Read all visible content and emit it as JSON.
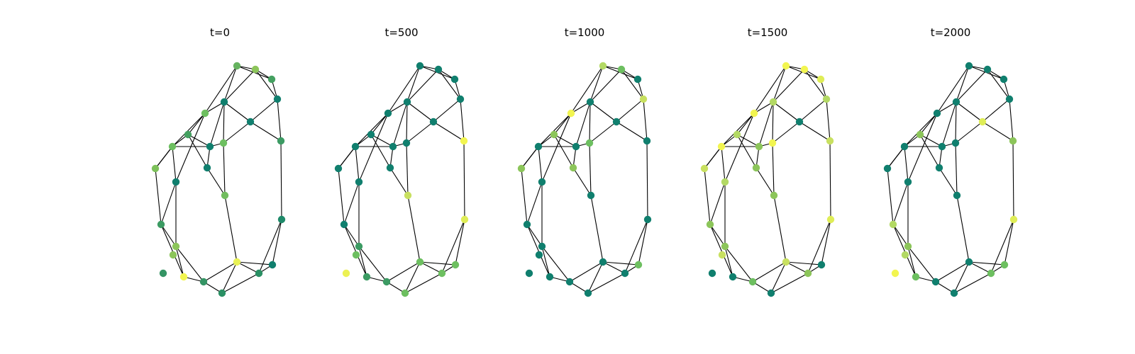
{
  "figure": {
    "panels": [
      {
        "title": "t=0",
        "node_colors": [
          "#66b360",
          "#8cc55a",
          "#44a060",
          "#107f6e",
          "#107f6e",
          "#6dbf60",
          "#107f6e",
          "#44a060",
          "#6dbf60",
          "#107f6e",
          "#6dbf60",
          "#7dc15a",
          "#107f6e",
          "#107f6e",
          "#72bd5f",
          "#3c9b63",
          "#1f8a6a",
          "#3c9b63",
          "#8cc55a",
          "#e8f255",
          "#107f6e",
          "#2a9064",
          "#f2f550",
          "#349464",
          "#2a9064",
          "#8cc55a",
          "#349464",
          "#ecf153"
        ]
      },
      {
        "title": "t=500",
        "node_colors": [
          "#107f6e",
          "#107f6e",
          "#107f6e",
          "#107f6e",
          "#107f6e",
          "#107f6e",
          "#107f6e",
          "#107f6e",
          "#107f6e",
          "#107f6e",
          "#107f6e",
          "#107f6e",
          "#107f6e",
          "#107f6e",
          "#c8e060",
          "#f2f550",
          "#dfed57",
          "#107f6e",
          "#3c9b63",
          "#6dbf60",
          "#6dbf60",
          "#6dbf60",
          "#3c9b63",
          "#3c9b63",
          "#6dbf60",
          "#6dbf60",
          "#ecf153",
          "#c8e060"
        ]
      },
      {
        "title": "t=1000",
        "node_colors": [
          "#b3d964",
          "#6dbf60",
          "#107f6e",
          "#c8e060",
          "#107f6e",
          "#f2f550",
          "#107f6e",
          "#8cc55a",
          "#107f6e",
          "#107f6e",
          "#6dbf60",
          "#8cc55a",
          "#8cc55a",
          "#107f6e",
          "#107f6e",
          "#107f6e",
          "#107f6e",
          "#107f6e",
          "#107f6e",
          "#107f6e",
          "#6dbf60",
          "#107f6e",
          "#107f6e",
          "#107f6e",
          "#107f6e",
          "#107f6e",
          "#107f6e",
          "#107f6e"
        ]
      },
      {
        "title": "t=1500",
        "node_colors": [
          "#f2f550",
          "#f2f550",
          "#dfed57",
          "#b3d964",
          "#b3d964",
          "#f2f550",
          "#107f6e",
          "#b3d964",
          "#f2f550",
          "#8cc55a",
          "#f2f550",
          "#c8e060",
          "#8cc55a",
          "#b3d964",
          "#8cc55a",
          "#c8e060",
          "#dfed57",
          "#8cc55a",
          "#8cc55a",
          "#c8e060",
          "#107f6e",
          "#8cc55a",
          "#107f6e",
          "#6dbf60",
          "#107f6e",
          "#c8e060",
          "#107f6e",
          "#b3d964"
        ]
      },
      {
        "title": "t=2000",
        "node_colors": [
          "#107f6e",
          "#107f6e",
          "#107f6e",
          "#107f6e",
          "#107f6e",
          "#107f6e",
          "#dfed57",
          "#8cc55a",
          "#107f6e",
          "#107f6e",
          "#107f6e",
          "#107f6e",
          "#107f6e",
          "#107f6e",
          "#107f6e",
          "#8cc55a",
          "#dfed57",
          "#b3d964",
          "#8cc55a",
          "#107f6e",
          "#6dbf60",
          "#6dbf60",
          "#6dbf60",
          "#107f6e",
          "#107f6e",
          "#b3d964",
          "#f2f550",
          "#f2f550"
        ]
      }
    ]
  }
}
